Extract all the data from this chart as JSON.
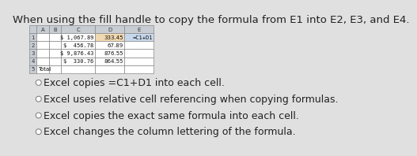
{
  "title": "When using the fill handle to copy the formula from E1 into E2, E3, and E4.",
  "title_fontsize": 9.5,
  "bg_color": "#e0e0e0",
  "spreadsheet": {
    "col_headers": [
      "A",
      "B",
      "C",
      "D",
      "E"
    ],
    "rows": [
      [
        "",
        "",
        "$ 1,067.89",
        "333.45",
        "=C1+D1"
      ],
      [
        "",
        "",
        "$  456.78",
        "67.89",
        ""
      ],
      [
        "",
        "",
        "$ 9,876.43",
        "876.55",
        ""
      ],
      [
        "",
        "",
        "$  330.76",
        "864.55",
        ""
      ],
      [
        "Total",
        "",
        "",
        "",
        ""
      ]
    ],
    "highlight_e1_color": "#c8d8ec",
    "highlight_d1_color": "#f0d8b0",
    "header_bg": "#c8cdd4",
    "cell_bg": "#ffffff",
    "border_color": "#888888",
    "row_nums": [
      "1",
      "2",
      "3",
      "4",
      "5"
    ]
  },
  "options": [
    {
      "text": "Excel copies =C1+D1 into each cell.",
      "selected": false
    },
    {
      "text": "Excel uses relative cell referencing when copying formulas.",
      "selected": false
    },
    {
      "text": "Excel copies the exact same formula into each cell.",
      "selected": false
    },
    {
      "text": "Excel changes the column lettering of the formula.",
      "selected": false
    }
  ],
  "option_font_size": 9.0,
  "radio_color": "#777777",
  "text_color": "#222222"
}
